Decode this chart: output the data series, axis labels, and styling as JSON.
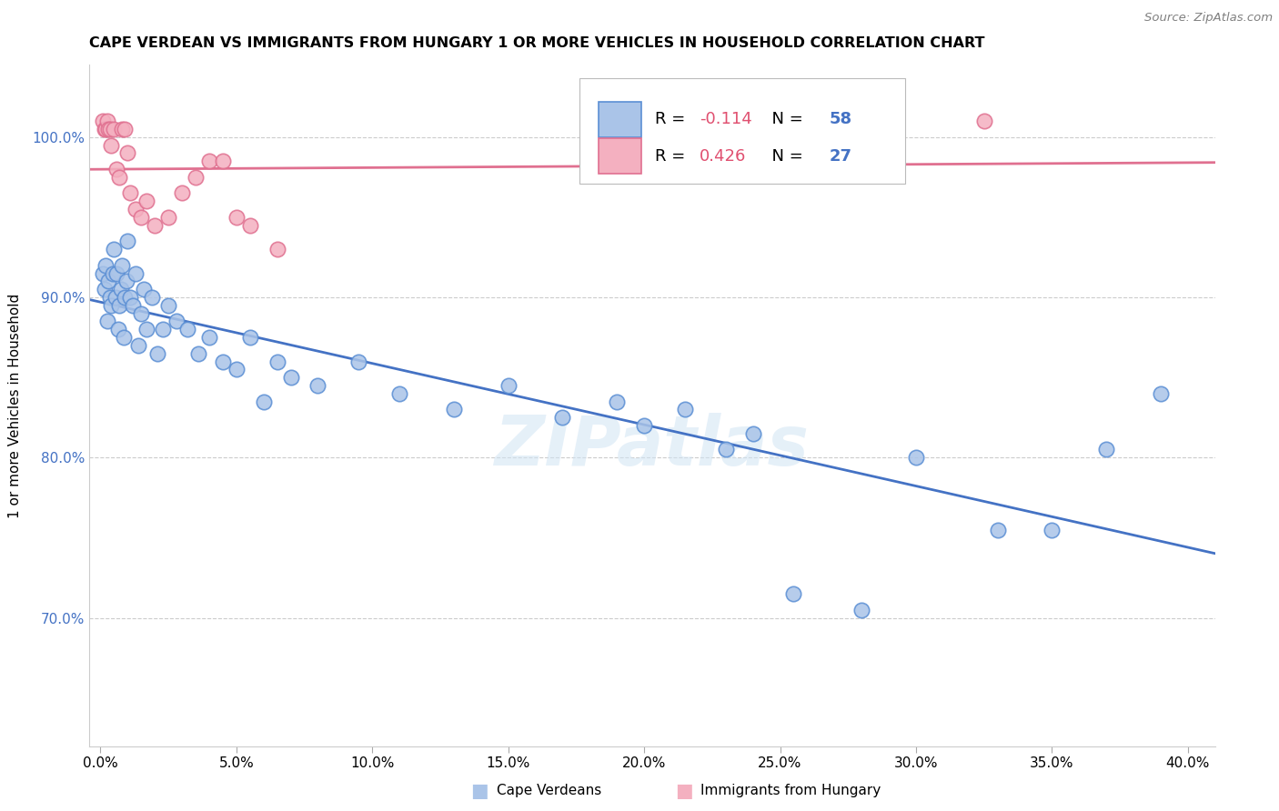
{
  "title": "CAPE VERDEAN VS IMMIGRANTS FROM HUNGARY 1 OR MORE VEHICLES IN HOUSEHOLD CORRELATION CHART",
  "source": "Source: ZipAtlas.com",
  "ylabel": "1 or more Vehicles in Household",
  "blue_label": "Cape Verdeans",
  "pink_label": "Immigrants from Hungary",
  "blue_R": -0.114,
  "blue_N": 58,
  "pink_R": 0.426,
  "pink_N": 27,
  "blue_face": "#aac4e8",
  "blue_edge": "#5b8fd4",
  "pink_face": "#f4b0c0",
  "pink_edge": "#e07090",
  "blue_line": "#4472c4",
  "pink_line": "#e07090",
  "legend_r_color": "#e05070",
  "legend_n_color": "#4472c4",
  "watermark_color": "#d0e4f4",
  "xlim": [
    -0.4,
    41.0
  ],
  "ylim": [
    62.0,
    104.5
  ],
  "x_ticks": [
    0,
    5,
    10,
    15,
    20,
    25,
    30,
    35,
    40
  ],
  "y_ticks": [
    70,
    80,
    90,
    100
  ],
  "blue_x": [
    0.1,
    0.15,
    0.2,
    0.25,
    0.3,
    0.35,
    0.4,
    0.45,
    0.5,
    0.55,
    0.6,
    0.65,
    0.7,
    0.75,
    0.8,
    0.85,
    0.9,
    0.95,
    1.0,
    1.1,
    1.2,
    1.3,
    1.4,
    1.5,
    1.6,
    1.7,
    1.9,
    2.1,
    2.3,
    2.5,
    2.8,
    3.2,
    3.6,
    4.0,
    4.5,
    5.0,
    5.5,
    6.0,
    6.5,
    7.0,
    8.0,
    9.5,
    11.0,
    13.0,
    15.0,
    17.0,
    19.0,
    20.0,
    21.5,
    23.0,
    24.0,
    25.5,
    28.0,
    30.0,
    33.0,
    35.0,
    37.0,
    39.0
  ],
  "blue_y": [
    91.5,
    90.5,
    92.0,
    88.5,
    91.0,
    90.0,
    89.5,
    91.5,
    93.0,
    90.0,
    91.5,
    88.0,
    89.5,
    90.5,
    92.0,
    87.5,
    90.0,
    91.0,
    93.5,
    90.0,
    89.5,
    91.5,
    87.0,
    89.0,
    90.5,
    88.0,
    90.0,
    86.5,
    88.0,
    89.5,
    88.5,
    88.0,
    86.5,
    87.5,
    86.0,
    85.5,
    87.5,
    83.5,
    86.0,
    85.0,
    84.5,
    86.0,
    84.0,
    83.0,
    84.5,
    82.5,
    83.5,
    82.0,
    83.0,
    80.5,
    81.5,
    71.5,
    70.5,
    80.0,
    75.5,
    75.5,
    80.5,
    84.0
  ],
  "pink_x": [
    0.1,
    0.15,
    0.2,
    0.25,
    0.3,
    0.35,
    0.4,
    0.5,
    0.6,
    0.7,
    0.8,
    0.9,
    1.0,
    1.1,
    1.3,
    1.5,
    1.7,
    2.0,
    2.5,
    3.0,
    3.5,
    4.0,
    4.5,
    5.0,
    5.5,
    6.5,
    32.5
  ],
  "pink_y": [
    101.0,
    100.5,
    100.5,
    101.0,
    100.5,
    100.5,
    99.5,
    100.5,
    98.0,
    97.5,
    100.5,
    100.5,
    99.0,
    96.5,
    95.5,
    95.0,
    96.0,
    94.5,
    95.0,
    96.5,
    97.5,
    98.5,
    98.5,
    95.0,
    94.5,
    93.0,
    101.0
  ]
}
